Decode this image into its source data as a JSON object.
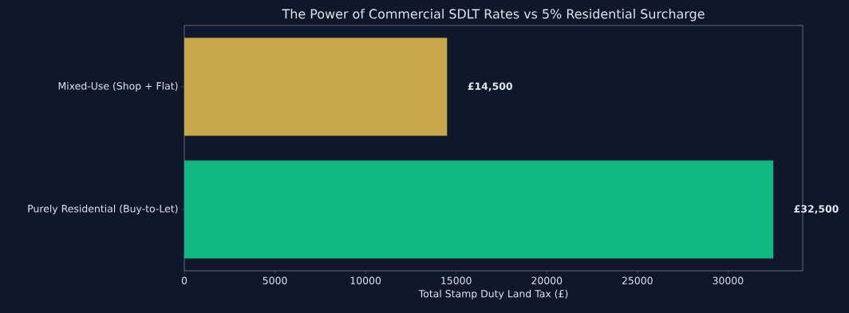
{
  "chart_data": {
    "type": "bar",
    "orientation": "horizontal",
    "title": "The Power of Commercial SDLT Rates vs 5% Residential Surcharge",
    "xlabel": "Total Stamp Duty Land Tax (£)",
    "categories": [
      "Mixed-Use (Shop + Flat)",
      "Purely Residential (Buy-to-Let)"
    ],
    "values": [
      14500,
      32500
    ],
    "colors": [
      "#c8a84b",
      "#10b981"
    ],
    "value_labels": [
      "£14,500",
      "£32,500"
    ],
    "xlim": [
      0,
      34125
    ],
    "xticks": [
      0,
      5000,
      10000,
      15000,
      20000,
      25000,
      30000
    ]
  }
}
